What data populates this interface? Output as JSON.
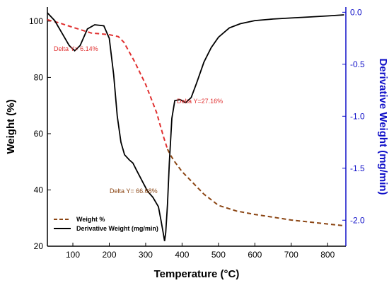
{
  "chart_data": {
    "type": "line",
    "xlabel": "Temperature (°C)",
    "ylabel_left": "Weight (%)",
    "ylabel_right": "Derivative Weight (mg/min)",
    "xlim": [
      30,
      850
    ],
    "ylim_left": [
      20,
      105
    ],
    "ylim_right": [
      -2.25,
      0.05
    ],
    "xticks": [
      "100",
      "200",
      "300",
      "400",
      "500",
      "600",
      "700",
      "800"
    ],
    "yticks_left": [
      "20",
      "40",
      "60",
      "80",
      "100"
    ],
    "yticks_right": [
      "0.0",
      "-0.5",
      "-1.0",
      "-1.5",
      "-2.0"
    ],
    "grid": false,
    "legend_position": "bottom-left",
    "series": [
      {
        "name": "Weight %",
        "axis": "left",
        "color": "#e03030",
        "color_tail": "#8b4513",
        "style": "dashed",
        "x": [
          30,
          60,
          100,
          150,
          200,
          225,
          240,
          255,
          270,
          285,
          300,
          315,
          330,
          340,
          350,
          360,
          370,
          380,
          400,
          430,
          460,
          500,
          550,
          600,
          650,
          700,
          750,
          800,
          845
        ],
        "y": [
          100.5,
          99.5,
          97.8,
          95.8,
          95.2,
          94.5,
          92.5,
          89.0,
          85.5,
          81.5,
          77.5,
          72.5,
          67.5,
          63.0,
          58.5,
          54.5,
          52.0,
          50.0,
          46.5,
          42.5,
          38.5,
          34.5,
          32.5,
          31.3,
          30.3,
          29.3,
          28.6,
          27.9,
          27.3
        ]
      },
      {
        "name": "Derivative Weight (mg/min)",
        "axis": "right",
        "color": "#000000",
        "style": "solid",
        "x": [
          30,
          50,
          70,
          90,
          105,
          120,
          140,
          160,
          185,
          200,
          212,
          222,
          232,
          242,
          255,
          265,
          275,
          290,
          305,
          320,
          335,
          342,
          348,
          352,
          355,
          360,
          365,
          372,
          380,
          395,
          410,
          425,
          440,
          460,
          480,
          500,
          530,
          560,
          600,
          650,
          700,
          750,
          800,
          845
        ],
        "y": [
          -0.005,
          -0.08,
          -0.2,
          -0.32,
          -0.37,
          -0.32,
          -0.16,
          -0.12,
          -0.13,
          -0.25,
          -0.6,
          -1.0,
          -1.25,
          -1.37,
          -1.42,
          -1.45,
          -1.52,
          -1.62,
          -1.72,
          -1.78,
          -1.87,
          -2.0,
          -2.12,
          -2.2,
          -2.12,
          -1.85,
          -1.45,
          -1.02,
          -0.85,
          -0.84,
          -0.87,
          -0.82,
          -0.68,
          -0.48,
          -0.34,
          -0.24,
          -0.15,
          -0.11,
          -0.08,
          -0.065,
          -0.055,
          -0.045,
          -0.035,
          -0.025
        ]
      }
    ],
    "annotations": [
      {
        "text": "Delta Y= 6.14%",
        "color": "#e03030"
      },
      {
        "text": "Delta Y=27.16%",
        "color": "#e03030"
      },
      {
        "text": "Delta Y= 66.68%",
        "color": "#8b4513"
      }
    ],
    "legend": [
      {
        "label": "Weight %"
      },
      {
        "label": "Derivative Weight (mg/min)"
      }
    ],
    "colors": {
      "axis_left": "#000000",
      "axis_right": "#1010c8"
    }
  }
}
